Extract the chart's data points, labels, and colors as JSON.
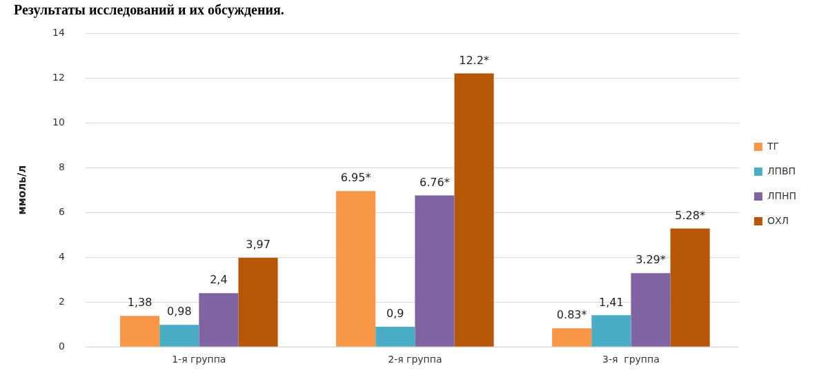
{
  "chart_data": {
    "type": "bar",
    "title": "Результаты исследований и их обсуждения.",
    "ylabel": "ммоль/л",
    "categories": [
      "1-я группа",
      "2-я группа",
      "3-я  группа"
    ],
    "series": [
      {
        "name": "ТГ",
        "color": "#f79646",
        "values": [
          1.38,
          6.95,
          0.83
        ],
        "value_labels": [
          "1,38",
          "6.95*",
          "0.83*"
        ]
      },
      {
        "name": "ЛПВП",
        "color": "#4bacc6",
        "values": [
          0.98,
          0.9,
          1.41
        ],
        "value_labels": [
          "0,98",
          "0,9",
          "1,41"
        ]
      },
      {
        "name": "ЛПНП",
        "color": "#8064a2",
        "values": [
          2.4,
          6.76,
          3.29
        ],
        "value_labels": [
          "2,4",
          "6.76*",
          "3.29*"
        ]
      },
      {
        "name": "ОХЛ",
        "color": "#b65708",
        "values": [
          3.97,
          12.2,
          5.28
        ],
        "value_labels": [
          "3,97",
          "12.2*",
          "5.28*"
        ]
      }
    ],
    "ylim": [
      0,
      14
    ],
    "yticks": [
      0,
      2,
      4,
      6,
      8,
      10,
      12,
      14
    ],
    "grid": "y",
    "legend": "right"
  }
}
